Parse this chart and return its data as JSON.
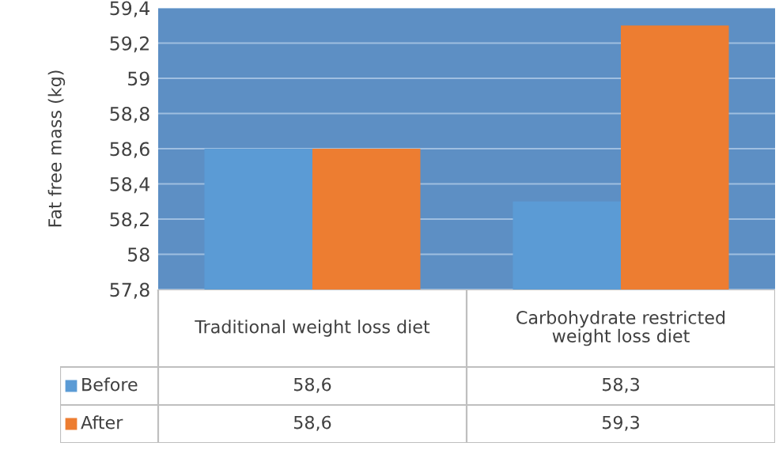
{
  "chart_data": {
    "type": "bar",
    "ylabel": "Fat free mass (kg)",
    "categories": [
      "Traditional weight loss diet",
      "Carbohydrate restricted\nweight loss diet"
    ],
    "series": [
      {
        "name": "Before",
        "color": "#5b9bd5",
        "values": [
          58.6,
          58.3
        ],
        "value_labels": [
          "58,6",
          "58,3"
        ]
      },
      {
        "name": "After",
        "color": "#ed7d31",
        "values": [
          58.6,
          59.3
        ],
        "value_labels": [
          "58,6",
          "59,3"
        ]
      }
    ],
    "ylim": [
      57.8,
      59.4
    ],
    "yticks": [
      {
        "value": 57.8,
        "label": "57,8"
      },
      {
        "value": 58.0,
        "label": "58"
      },
      {
        "value": 58.2,
        "label": "58,2"
      },
      {
        "value": 58.4,
        "label": "58,4"
      },
      {
        "value": 58.6,
        "label": "58,6"
      },
      {
        "value": 58.8,
        "label": "58,8"
      },
      {
        "value": 59.0,
        "label": "59"
      },
      {
        "value": 59.2,
        "label": "59,2"
      },
      {
        "value": 59.4,
        "label": "59,4"
      }
    ],
    "grid": "y",
    "legend": "bottom"
  }
}
